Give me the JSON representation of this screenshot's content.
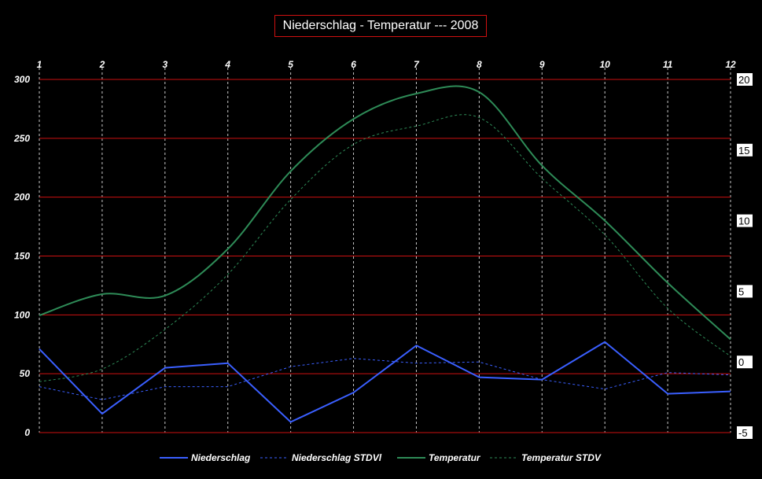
{
  "chart_data": {
    "type": "line",
    "title": "Niederschlag - Temperatur --- 2008",
    "x": [
      1,
      2,
      3,
      4,
      5,
      6,
      7,
      8,
      9,
      10,
      11,
      12
    ],
    "x_tick_labels": [
      "1",
      "2",
      "3",
      "4",
      "5",
      "6",
      "7",
      "8",
      "9",
      "10",
      "11",
      "12"
    ],
    "y_left": {
      "range": [
        0,
        300
      ],
      "ticks": [
        0,
        50,
        100,
        150,
        200,
        250,
        300
      ]
    },
    "y_right": {
      "range": [
        -5,
        20
      ],
      "ticks": [
        -5,
        0,
        5,
        10,
        15,
        20
      ]
    },
    "grid": {
      "horizontal": true,
      "vertical": true
    },
    "legend_position": "bottom",
    "series": [
      {
        "name": "Niederschlag",
        "axis": "left",
        "style": "solid",
        "color": "#3a5fff",
        "values": [
          71,
          16,
          55,
          59,
          9,
          34,
          74,
          47,
          45,
          77,
          33,
          35
        ]
      },
      {
        "name": "Niederschlag STDVl",
        "axis": "left",
        "style": "dashed",
        "color": "#3a5fff",
        "values": [
          39,
          28,
          39,
          39,
          56,
          63,
          59,
          60,
          45,
          37,
          51,
          49
        ]
      },
      {
        "name": "Temperatur",
        "axis": "right",
        "style": "solid",
        "color": "#2e8b57",
        "values": [
          3.3,
          4.8,
          4.7,
          8.0,
          13.5,
          17.2,
          19.0,
          19.1,
          13.9,
          10.0,
          5.6,
          1.6
        ]
      },
      {
        "name": "Temperatur STDV",
        "axis": "right",
        "style": "dashed",
        "color": "#2e8b57",
        "values": [
          -1.4,
          -0.5,
          2.3,
          6.2,
          11.5,
          15.4,
          16.7,
          17.3,
          13.0,
          9.0,
          3.8,
          0.4
        ]
      }
    ]
  }
}
